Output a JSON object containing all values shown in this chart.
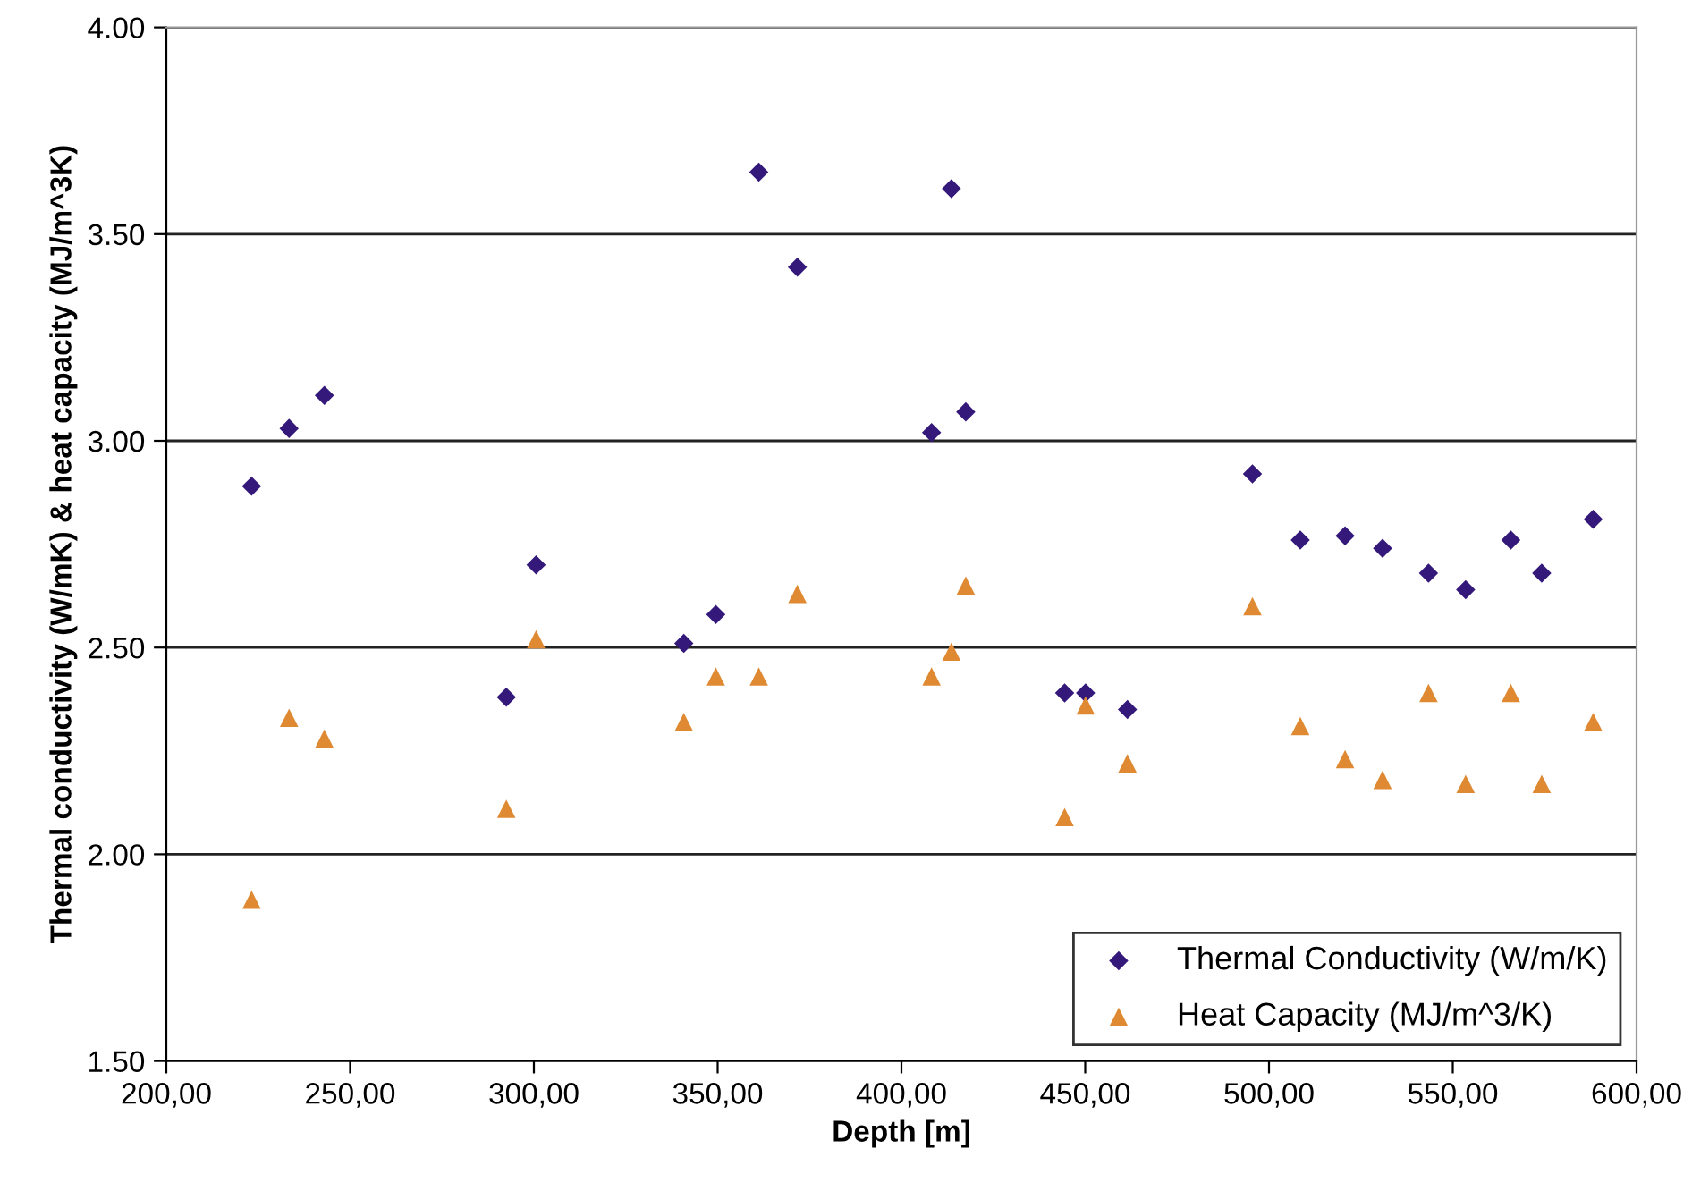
{
  "chart_data": {
    "type": "scatter",
    "xlabel": "Depth [m]",
    "ylabel": "Thermal conductivity (W/mK) & heat capacity (MJ/m^3K)",
    "x": [
      223.2,
      233.4,
      243.0,
      292.5,
      300.6,
      340.8,
      349.5,
      361.2,
      371.7,
      408.2,
      413.6,
      417.5,
      444.4,
      450.1,
      461.5,
      495.5,
      508.5,
      520.7,
      530.9,
      543.4,
      553.5,
      565.8,
      574.2,
      588.2
    ],
    "series": [
      {
        "name": "Thermal Conductivity (W/m/K)",
        "color": "#34197a",
        "marker": "diamond",
        "values": [
          2.89,
          3.03,
          3.11,
          2.38,
          2.7,
          2.51,
          2.58,
          3.65,
          3.42,
          3.02,
          3.61,
          3.07,
          2.39,
          2.39,
          2.35,
          2.92,
          2.76,
          2.77,
          2.74,
          2.68,
          2.64,
          2.76,
          2.68,
          2.81
        ]
      },
      {
        "name": "Heat Capacity (MJ/m^3/K)",
        "color": "#df8a33",
        "marker": "triangle",
        "values": [
          1.89,
          2.33,
          2.28,
          2.11,
          2.52,
          2.32,
          2.43,
          2.43,
          2.63,
          2.43,
          2.49,
          2.65,
          2.09,
          2.36,
          2.22,
          2.6,
          2.31,
          2.23,
          2.18,
          2.39,
          2.17,
          2.39,
          2.17,
          2.32
        ]
      }
    ],
    "xlim": [
      200,
      600
    ],
    "xticks": [
      {
        "value": 200,
        "label": "200,00"
      },
      {
        "value": 250,
        "label": "250,00"
      },
      {
        "value": 300,
        "label": "300,00"
      },
      {
        "value": 350,
        "label": "350,00"
      },
      {
        "value": 400,
        "label": "400,00"
      },
      {
        "value": 450,
        "label": "450,00"
      },
      {
        "value": 500,
        "label": "500,00"
      },
      {
        "value": 550,
        "label": "550,00"
      },
      {
        "value": 600,
        "label": "600,00"
      }
    ],
    "ylim": [
      1.5,
      4.0
    ],
    "yticks": [
      {
        "value": 1.5,
        "label": "1.50"
      },
      {
        "value": 2.0,
        "label": "2.00"
      },
      {
        "value": 2.5,
        "label": "2.50"
      },
      {
        "value": 3.0,
        "label": "3.00"
      },
      {
        "value": 3.5,
        "label": "3.50"
      },
      {
        "value": 4.0,
        "label": "4.00"
      }
    ],
    "grid": "y",
    "legend": "bottom right"
  }
}
